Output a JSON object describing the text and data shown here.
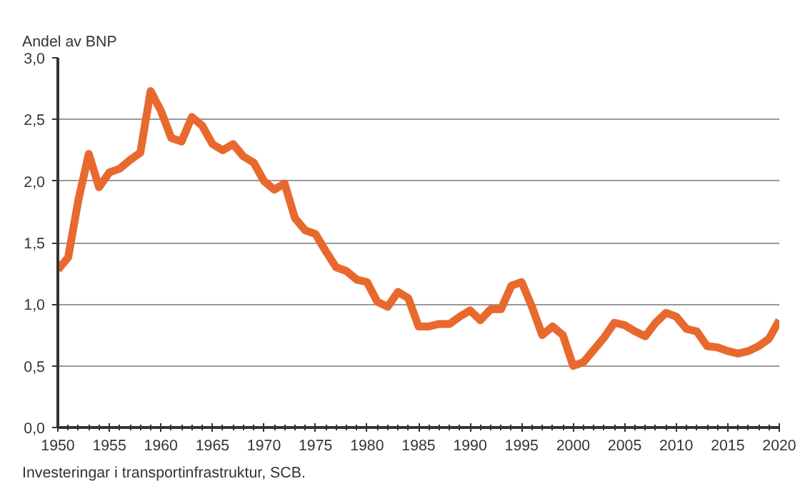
{
  "chart_data": {
    "type": "line",
    "ylabel": "Andel av BNP",
    "annotations": [
      "Investeringar i transportinfrastruktur, SCB."
    ],
    "x": [
      1950,
      1951,
      1952,
      1953,
      1954,
      1955,
      1956,
      1957,
      1958,
      1959,
      1960,
      1961,
      1962,
      1963,
      1964,
      1965,
      1966,
      1967,
      1968,
      1969,
      1970,
      1971,
      1972,
      1973,
      1974,
      1975,
      1976,
      1977,
      1978,
      1979,
      1980,
      1981,
      1982,
      1983,
      1984,
      1985,
      1986,
      1987,
      1988,
      1989,
      1990,
      1991,
      1992,
      1993,
      1994,
      1995,
      1996,
      1997,
      1998,
      1999,
      2000,
      2001,
      2002,
      2003,
      2004,
      2005,
      2006,
      2007,
      2008,
      2009,
      2010,
      2011,
      2012,
      2013,
      2014,
      2015,
      2016,
      2017,
      2018,
      2019,
      2020
    ],
    "series": [
      {
        "color": "#e8692e",
        "values": [
          1.28,
          1.38,
          1.85,
          2.22,
          1.95,
          2.07,
          2.1,
          2.17,
          2.23,
          2.73,
          2.57,
          2.35,
          2.32,
          2.52,
          2.45,
          2.3,
          2.25,
          2.3,
          2.2,
          2.15,
          2.0,
          1.93,
          1.98,
          1.7,
          1.6,
          1.57,
          1.43,
          1.3,
          1.27,
          1.2,
          1.18,
          1.02,
          0.98,
          1.1,
          1.05,
          0.82,
          0.82,
          0.84,
          0.84,
          0.9,
          0.95,
          0.87,
          0.96,
          0.96,
          1.15,
          1.18,
          0.98,
          0.75,
          0.82,
          0.75,
          0.5,
          0.53,
          0.63,
          0.73,
          0.85,
          0.83,
          0.78,
          0.74,
          0.85,
          0.93,
          0.9,
          0.8,
          0.78,
          0.66,
          0.65,
          0.62,
          0.6,
          0.62,
          0.66,
          0.72,
          0.87
        ]
      }
    ],
    "xlim": [
      1950,
      2020
    ],
    "xticks": [
      1950,
      1955,
      1960,
      1965,
      1970,
      1975,
      1980,
      1985,
      1990,
      1995,
      2000,
      2005,
      2010,
      2015,
      2020
    ],
    "ylim": [
      0,
      3
    ],
    "yticks": [
      {
        "value": 0,
        "label": "0,0"
      },
      {
        "value": 0.5,
        "label": "0,5"
      },
      {
        "value": 1,
        "label": "1,0"
      },
      {
        "value": 1.5,
        "label": "1,5"
      },
      {
        "value": 2,
        "label": "2,0"
      },
      {
        "value": 2.5,
        "label": "2,5"
      },
      {
        "value": 3,
        "label": "3,0"
      }
    ],
    "grid": "y",
    "line_style": "solid"
  }
}
